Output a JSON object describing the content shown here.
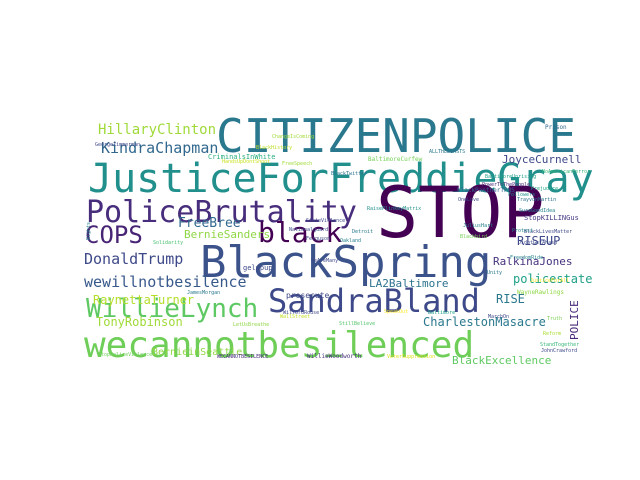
{
  "words": [
    {
      "text": "CITIZENPOLICE",
      "color": "#2a788e"
    },
    {
      "text": "JusticeForFreddieGray",
      "color": "#21908d"
    },
    {
      "text": "STOP",
      "color": "#440154"
    },
    {
      "text": "PoliceBrutality",
      "color": "#472d7b"
    },
    {
      "text": "BlackSpring",
      "color": "#3b528b"
    },
    {
      "text": "black",
      "color": "#440154"
    },
    {
      "text": "COPS",
      "color": "#482475"
    },
    {
      "text": "SandraBland",
      "color": "#3e4989"
    },
    {
      "text": "WillieLynch",
      "color": "#5ec962"
    },
    {
      "text": "wecannotbesilenced",
      "color": "#6ece58"
    },
    {
      "text": "HillaryClinton",
      "color": "#a0da39"
    },
    {
      "text": "KindraChapman",
      "color": "#31688e"
    },
    {
      "text": "DonaldTrump",
      "color": "#3e4989"
    },
    {
      "text": "wewillnotbesilence",
      "color": "#38598c"
    },
    {
      "text": "RaynettaTurner",
      "color": "#b5de2b"
    },
    {
      "text": "TonyRobinson",
      "color": "#a0da39"
    },
    {
      "text": "FreeBree",
      "color": "#31688e"
    },
    {
      "text": "BernieSanders",
      "color": "#8fd744"
    },
    {
      "text": "JoyceCurnell",
      "color": "#3e4989"
    },
    {
      "text": "RISEUP",
      "color": "#3e4989"
    },
    {
      "text": "RalkinaJones",
      "color": "#46327e"
    },
    {
      "text": "policestate",
      "color": "#1fa187"
    },
    {
      "text": "LA2Baltimore",
      "color": "#2c728e"
    },
    {
      "text": "RISE",
      "color": "#2a788e"
    },
    {
      "text": "CharlestonMasacre",
      "color": "#2a788e"
    },
    {
      "text": "POLICE",
      "color": "#482878"
    },
    {
      "text": "BernieinSeattle",
      "color": "#8fd744"
    },
    {
      "text": "BlackExcellence",
      "color": "#5ec962"
    },
    {
      "text": "prosecute",
      "color": "#3e4989"
    },
    {
      "text": "StopKILLINGus",
      "color": "#443983"
    },
    {
      "text": "blackPantherTPNS",
      "color": "#355f8d"
    },
    {
      "text": "BaltimoreCurfew",
      "color": "#73d056"
    },
    {
      "text": "CriminalsInWhite",
      "color": "#29af7f"
    },
    {
      "text": "gelupup",
      "color": "#3e4989"
    },
    {
      "text": "Prison",
      "color": "#31688e"
    },
    {
      "text": "RaisePlinkeyMatrix",
      "color": "#21918c"
    },
    {
      "text": "WillieWoodworth",
      "color": "#46327e"
    },
    {
      "text": "StillBelieve",
      "color": "#52c569"
    },
    {
      "text": "BlackHistory",
      "color": "#bddf26"
    },
    {
      "text": "HandsUpDontShoot",
      "color": "#cae11f"
    },
    {
      "text": "ALLTHEBEASTS",
      "color": "#2a788e"
    },
    {
      "text": "WECANNOTBESILENCE",
      "color": "#472d7b"
    },
    {
      "text": "WilfordRouse",
      "color": "#3e4989"
    },
    {
      "text": "SureGoodIdea",
      "color": "#26828e"
    },
    {
      "text": "WayneRawlings",
      "color": "#8fd744"
    },
    {
      "text": "GeorgeZimmerman",
      "color": "#3e4989"
    },
    {
      "text": "NoAmericanTerror",
      "color": "#35b779"
    },
    {
      "text": "BaltimoreUprising",
      "color": "#1f9e89"
    },
    {
      "text": "JuliusHart",
      "color": "#26828e"
    },
    {
      "text": "Blackbird",
      "color": "#73d056"
    },
    {
      "text": "Ferguson",
      "color": "#3e4989"
    },
    {
      "text": "VoterSuppression",
      "color": "#dde318"
    },
    {
      "text": "StopPoliceViolence",
      "color": "#6ece58"
    },
    {
      "text": "BlackLivesMatter",
      "color": "#3e4989"
    },
    {
      "text": "Prejudice",
      "color": "#20a486"
    },
    {
      "text": "SpeakOut",
      "color": "#fde725"
    },
    {
      "text": "PowerToThePeople",
      "color": "#482878"
    },
    {
      "text": "TrayvonMartin",
      "color": "#2c728e"
    },
    {
      "text": "Protest",
      "color": "#26828e"
    },
    {
      "text": "JusticeForAll",
      "color": "#fde725"
    },
    {
      "text": "Followers",
      "color": "#21918c"
    },
    {
      "text": "JohnCrawford",
      "color": "#3e4989"
    },
    {
      "text": "DidntGetAHash",
      "color": "#3e4989"
    },
    {
      "text": "JamesMorgan",
      "color": "#2a788e"
    },
    {
      "text": "FreedomRide",
      "color": "#26828e"
    },
    {
      "text": "WeAreMany",
      "color": "#3e4989"
    },
    {
      "text": "Oakland",
      "color": "#26828e"
    },
    {
      "text": "Detroit",
      "color": "#2a788e"
    },
    {
      "text": "WallStreet",
      "color": "#c2df23"
    },
    {
      "text": "Baltimore",
      "color": "#1fa187"
    },
    {
      "text": "ChangeIsComing",
      "color": "#a0da39"
    },
    {
      "text": "StandTogether",
      "color": "#35b779"
    },
    {
      "text": "Reform",
      "color": "#a8db34"
    },
    {
      "text": "LetUsBreathe",
      "color": "#8fd744"
    },
    {
      "text": "FreeSpeech",
      "color": "#a0da39"
    },
    {
      "text": "BlackTwitter",
      "color": "#2c728e"
    },
    {
      "text": "Solidarity",
      "color": "#48c16e"
    },
    {
      "text": "Nationalguard",
      "color": "#3e4989"
    },
    {
      "text": "Truth",
      "color": "#7ad151"
    },
    {
      "text": "OneLove",
      "color": "#3e4989"
    },
    {
      "text": "Rights",
      "color": "#26828e"
    },
    {
      "text": "StateViolence",
      "color": "#3e4989"
    },
    {
      "text": "MarchOn",
      "color": "#3e4989"
    },
    {
      "text": "Unity",
      "color": "#2a788e"
    }
  ]
}
